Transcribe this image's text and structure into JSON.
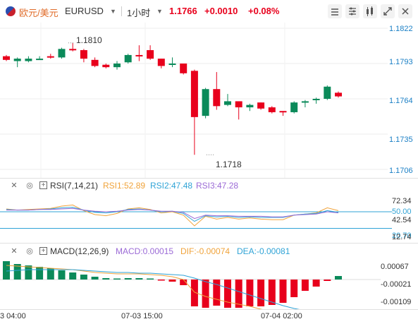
{
  "header": {
    "pair_name": "欧元/美元",
    "symbol": "EURUSD",
    "timeframe": "1小时",
    "price": "1.1766",
    "change": "+0.0010",
    "change_pct": "+0.08%",
    "colors": {
      "up": "#e8001c",
      "down": "#0b8a5a",
      "accent": "#e06d2b"
    }
  },
  "main_chart": {
    "price_ticks": [
      "1.1822",
      "1.1793",
      "1.1764",
      "1.1735",
      "1.1706"
    ],
    "high_label": "1.1810",
    "low_label": "1.1718"
  },
  "rsi": {
    "title": "RSI(7,14,21)",
    "rsi1": "RSI1:52.89",
    "rsi2": "RSI2:47.48",
    "rsi3": "RSI3:47.28",
    "ticks": [
      "72.34",
      "50.00",
      "42.54",
      "20.70",
      "12.74"
    ]
  },
  "macd": {
    "title": "MACD(12,26,9)",
    "macd": "MACD:0.00015",
    "dif": "DIF:-0.00074",
    "dea": "DEA:-0.00081",
    "ticks": [
      "0.00067",
      "-0.00021",
      "-0.00109"
    ]
  },
  "time_axis": [
    "3 04:00",
    "07-03 15:00",
    "07-04 02:00"
  ],
  "icons": [
    "collapse-icon",
    "settings-icon",
    "bar-chart-icon",
    "fullscreen-icon",
    "close-icon",
    "eye-icon",
    "gear-icon",
    "expand-icon"
  ]
}
